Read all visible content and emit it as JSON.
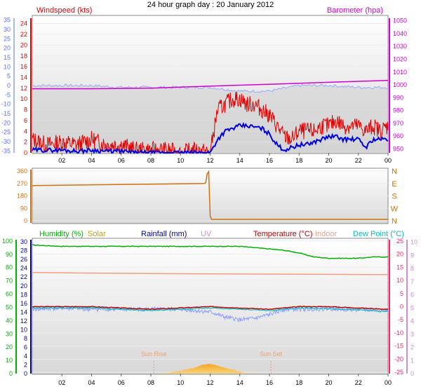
{
  "title": "24 hour graph day : 20 January 2012",
  "colors": {
    "wind": "#e00000",
    "wind_avg": "#0000e0",
    "baro": "#d000d0",
    "temp_axis": "#6070ff",
    "direction": "#d07010",
    "humidity": "#00b000",
    "solar": "#c8a000",
    "rain": "#000090",
    "uv": "#c890d0",
    "temperature": "#c00000",
    "indoor": "#f0a080",
    "dewpoint": "#00c0c0",
    "temp_right": "#ff2070",
    "dew_line": "#8ea0ff",
    "sun_marker": "#f0a070"
  },
  "chart_data": [
    {
      "type": "line",
      "panel": "wind-barometer",
      "title": "24 hour graph day : 20 January 2012",
      "ylabel": "Windspeed (kts)",
      "y2label": "Barometer (hpa)",
      "x_ticks": [
        "02",
        "04",
        "06",
        "08",
        "10",
        "12",
        "14",
        "16",
        "18",
        "20",
        "22",
        "00"
      ],
      "x_range_hours": [
        0,
        24
      ],
      "ylim": [
        0,
        25
      ],
      "y_ticks": [
        "0",
        "2",
        "4",
        "6",
        "8",
        "10",
        "12",
        "14",
        "16",
        "18",
        "20",
        "22",
        "24"
      ],
      "y2lim": [
        947,
        1052
      ],
      "y2_ticks": [
        "950",
        "960",
        "970",
        "980",
        "990",
        "1000",
        "1010",
        "1020",
        "1030",
        "1040",
        "1050"
      ],
      "y3lim": [
        -36,
        36
      ],
      "y3_ticks": [
        "-35",
        "-30",
        "-25",
        "-20",
        "-15",
        "-10",
        "-5",
        "0",
        "5",
        "10",
        "15",
        "20",
        "25",
        "30",
        "35"
      ],
      "series": [
        {
          "name": "Windspeed (kts)",
          "x": [
            0,
            1,
            2,
            3,
            4,
            5,
            6,
            7,
            8,
            9,
            10,
            11,
            12,
            12.5,
            13,
            13.5,
            14,
            14.5,
            15,
            15.5,
            16,
            16.5,
            17,
            17.5,
            18,
            18.5,
            19,
            19.5,
            20,
            20.5,
            21,
            21.5,
            22,
            22.5,
            23,
            23.5,
            24
          ],
          "values": [
            2.5,
            1.5,
            2,
            1.5,
            2.5,
            1.5,
            1.5,
            0.5,
            0.5,
            0.5,
            0,
            0.5,
            0,
            8,
            9,
            10,
            10,
            9,
            9,
            8,
            7,
            5,
            3,
            2.5,
            4,
            4,
            4,
            5,
            5,
            6,
            5,
            5,
            5,
            4,
            5,
            4,
            5
          ]
        },
        {
          "x": [
            0,
            1,
            2,
            3,
            4,
            5,
            6,
            7,
            8,
            9,
            10,
            11,
            12,
            12.5,
            13,
            13.5,
            14,
            14.5,
            15,
            15.5,
            16,
            16.5,
            17,
            17.5,
            18,
            18.5,
            19,
            19.5,
            20,
            20.5,
            21,
            21.5,
            22,
            22.5,
            23,
            23.5,
            24
          ],
          "values": [
            0.5,
            0.5,
            0.5,
            0.3,
            0.5,
            0.3,
            0.3,
            0,
            0,
            0,
            0,
            0,
            0,
            2.5,
            4,
            4.5,
            5,
            5,
            4.8,
            4.5,
            3.5,
            1.5,
            0.5,
            1,
            1.5,
            1.5,
            2,
            2.5,
            3,
            3,
            2.5,
            2.5,
            2.5,
            1,
            2.5,
            2.5,
            2.5
          ]
        },
        {
          "name": "Barometer (hpa)",
          "x": [
            0,
            4,
            8,
            12,
            16,
            20,
            24
          ],
          "values": [
            997,
            997,
            997.5,
            999,
            1000.5,
            1002,
            1003.5
          ]
        },
        {
          "x": [
            0,
            2,
            4,
            6,
            8,
            10,
            12,
            14,
            16,
            18,
            20,
            22,
            24
          ],
          "values": [
            0,
            0,
            0,
            -1,
            -1,
            -1,
            -1,
            -3,
            -3,
            0,
            0,
            -1,
            -1
          ]
        }
      ]
    },
    {
      "type": "line",
      "panel": "wind-direction",
      "x_ticks": [
        "02",
        "04",
        "06",
        "08",
        "10",
        "12",
        "14",
        "16",
        "18",
        "20",
        "22",
        "00"
      ],
      "x_range_hours": [
        0,
        24
      ],
      "ylim": [
        0,
        360
      ],
      "y_ticks": [
        "0",
        "90",
        "180",
        "270",
        "360"
      ],
      "y_compass": [
        "N",
        "W",
        "S",
        "E",
        "N"
      ],
      "series": [
        {
          "x": [
            0,
            0.1,
            11.6,
            11.7,
            11.8,
            11.9,
            12,
            12.05,
            12.1,
            24
          ],
          "values": [
            250,
            255,
            270,
            275,
            340,
            355,
            40,
            20,
            10,
            10
          ]
        }
      ]
    },
    {
      "type": "line",
      "panel": "humidity-temperature",
      "x_ticks": [
        "02",
        "04",
        "06",
        "08",
        "10",
        "12",
        "14",
        "16",
        "18",
        "20",
        "22",
        "00"
      ],
      "x_range_hours": [
        0,
        24
      ],
      "legend": [
        "Humidity (%)",
        "Solar",
        "Rainfall (mm)",
        "UV",
        "Temperature (°C)",
        "Indoor",
        "Dew Point (°C)"
      ],
      "humidity_ticks": [
        "0",
        "10",
        "20",
        "30",
        "40",
        "50",
        "60",
        "70",
        "80",
        "90",
        "100"
      ],
      "rain_ticks": [
        "0",
        "2",
        "4",
        "6",
        "8",
        "10",
        "12",
        "14",
        "16",
        "18",
        "20",
        "22",
        "24",
        "26",
        "28",
        "30"
      ],
      "temp_ticks": [
        "-25",
        "-20",
        "-15",
        "-10",
        "-5",
        "0",
        "5",
        "10",
        "15",
        "20",
        "25"
      ],
      "uv_ticks": [
        "0",
        "1",
        "2",
        "3",
        "4",
        "5",
        "6",
        "7",
        "8",
        "9",
        "10"
      ],
      "annotations": [
        "Sun Rise",
        "Sun Set"
      ],
      "series": [
        {
          "name": "Humidity (%)",
          "x": [
            0,
            2,
            4,
            6,
            8,
            10,
            12,
            14,
            16,
            17,
            18,
            19,
            20,
            21,
            22,
            23,
            24
          ],
          "values": [
            97,
            96,
            96,
            96,
            96,
            96,
            96,
            96,
            94,
            93,
            91,
            88,
            87,
            87,
            87,
            88,
            88
          ]
        },
        {
          "name": "Temperature (°C)",
          "x": [
            0,
            2,
            4,
            6,
            8,
            10,
            12,
            14,
            16,
            18,
            20,
            22,
            24
          ],
          "values": [
            0,
            0,
            0,
            -0.5,
            -1,
            -0.5,
            0,
            -0.5,
            -1,
            0,
            0,
            -0.5,
            -1
          ]
        },
        {
          "name": "Indoor",
          "x": [
            0,
            4,
            8,
            12,
            16,
            20,
            24
          ],
          "values": [
            13,
            12.8,
            12.6,
            12.5,
            12.4,
            12.3,
            12.2
          ]
        },
        {
          "name": "Dew Point (°C)",
          "x": [
            0,
            2,
            4,
            6,
            8,
            10,
            12,
            14,
            16,
            18,
            20,
            22,
            24
          ],
          "values": [
            -0.5,
            -0.5,
            -0.5,
            -1,
            -1.5,
            -1,
            -0.5,
            -1,
            -1.5,
            -0.5,
            -0.8,
            -1.2,
            -1.8
          ]
        },
        {
          "x": [
            0,
            2,
            4,
            6,
            8,
            10,
            12,
            13,
            14,
            15,
            16,
            17,
            18,
            20,
            22,
            24
          ],
          "values": [
            -1,
            -0.5,
            -1,
            -1,
            -1,
            -1,
            -2,
            -4,
            -5,
            -4.5,
            -3,
            -1,
            -1,
            -0.8,
            -1.2,
            -1.5
          ]
        },
        {
          "name": "Solar",
          "x": [
            8.5,
            9,
            10,
            11,
            11.5,
            12,
            12.5,
            13,
            14,
            14.5,
            15
          ],
          "values": [
            0,
            0.05,
            0.3,
            0.6,
            0.9,
            1,
            0.8,
            0.6,
            0.2,
            0.05,
            0
          ]
        }
      ]
    }
  ]
}
